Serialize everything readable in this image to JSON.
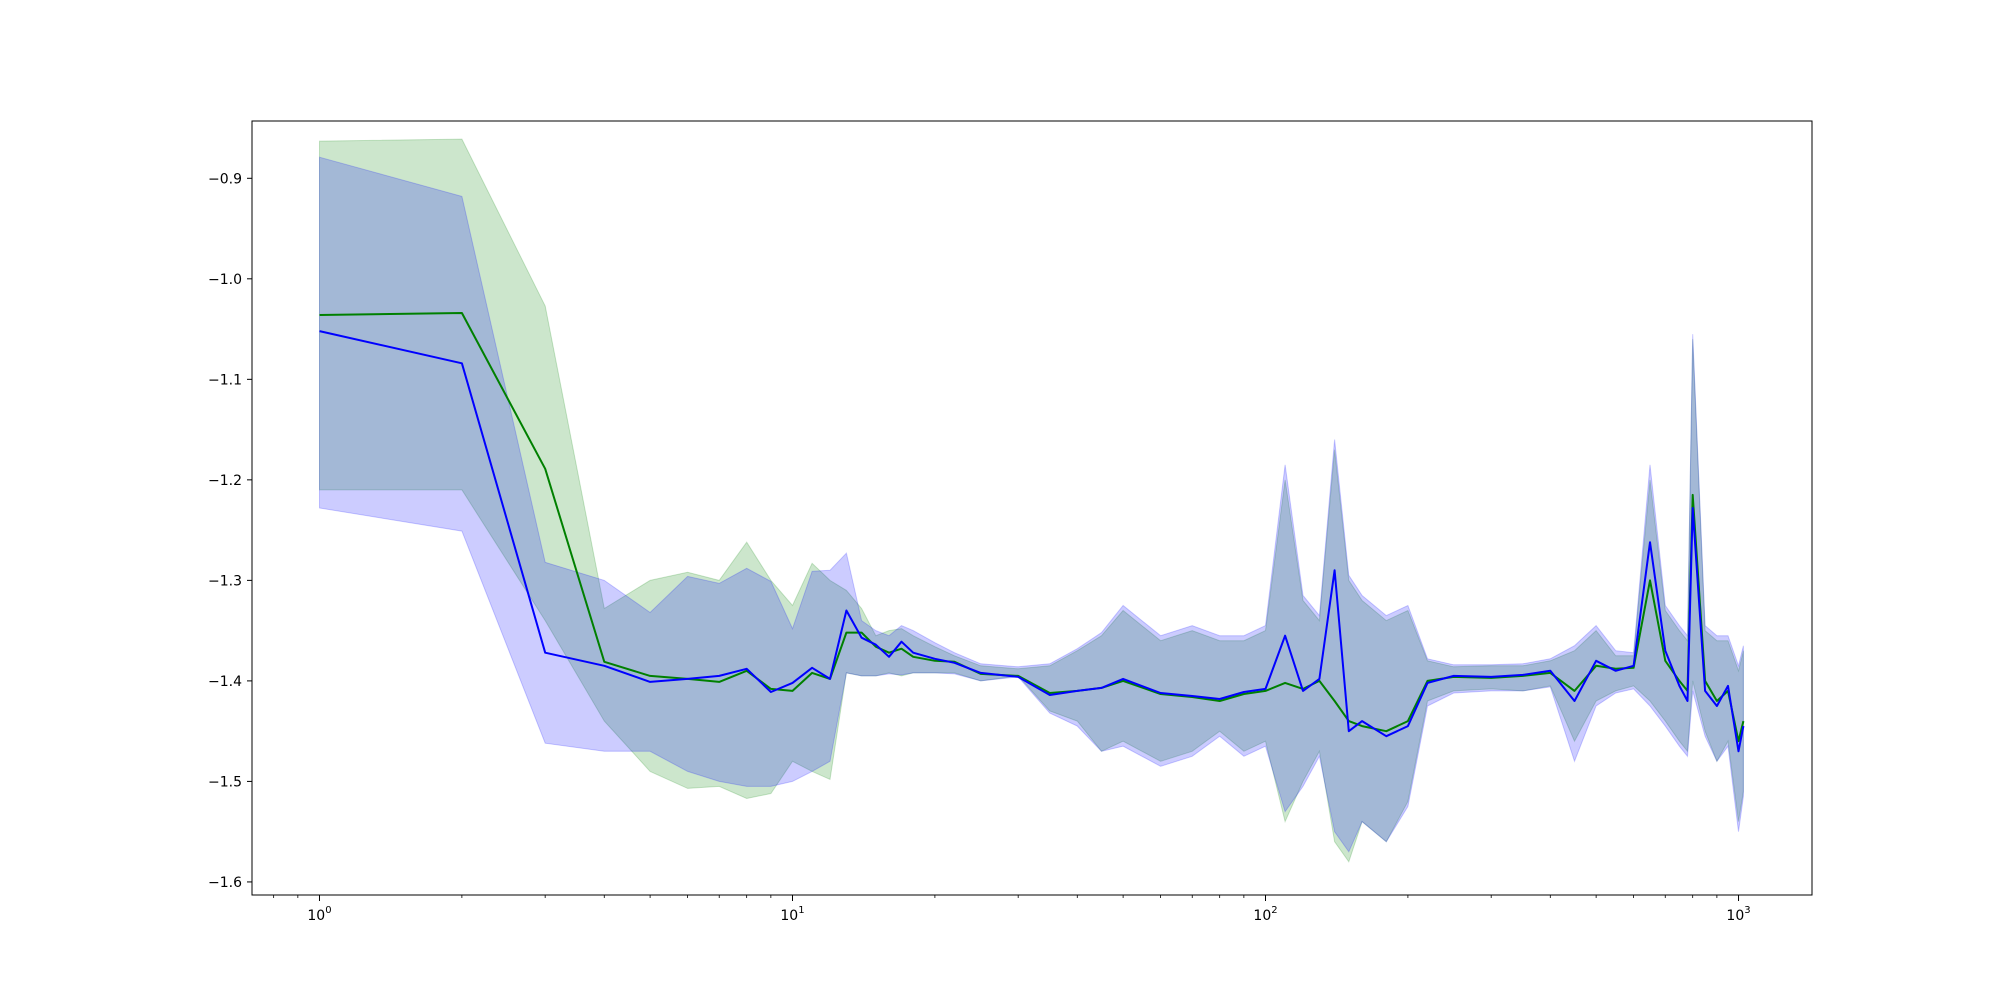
{
  "chart_data": {
    "type": "line",
    "title": "",
    "xlabel": "",
    "ylabel": "",
    "x_scale": "log",
    "xlim": [
      0.72,
      1430
    ],
    "ylim": [
      -1.613,
      -0.843
    ],
    "grid": false,
    "y_ticks": [
      {
        "value": -0.9,
        "label": "−0.9"
      },
      {
        "value": -1.0,
        "label": "−1.0"
      },
      {
        "value": -1.1,
        "label": "−1.1"
      },
      {
        "value": -1.2,
        "label": "−1.2"
      },
      {
        "value": -1.3,
        "label": "−1.3"
      },
      {
        "value": -1.4,
        "label": "−1.4"
      },
      {
        "value": -1.5,
        "label": "−1.5"
      },
      {
        "value": -1.6,
        "label": "−1.6"
      }
    ],
    "x_ticks": [
      {
        "value": 1,
        "base": "10",
        "exp": "0"
      },
      {
        "value": 10,
        "base": "10",
        "exp": "1"
      },
      {
        "value": 100,
        "base": "10",
        "exp": "2"
      },
      {
        "value": 1000,
        "base": "10",
        "exp": "3"
      }
    ],
    "series": [
      {
        "color": "#008000",
        "band_color": "#008000",
        "band_opacity": 0.2,
        "x": [
          1,
          2,
          3,
          4,
          5,
          6,
          7,
          8,
          9,
          10,
          11,
          12,
          13,
          14,
          15,
          16,
          17,
          18,
          20,
          22,
          25,
          30,
          35,
          40,
          45,
          50,
          60,
          70,
          80,
          90,
          100,
          110,
          120,
          130,
          140,
          150,
          160,
          180,
          200,
          220,
          250,
          300,
          350,
          400,
          450,
          500,
          550,
          600,
          650,
          700,
          750,
          780,
          800,
          850,
          900,
          950,
          1000,
          1024
        ],
        "y": [
          -1.036,
          -1.034,
          -1.189,
          -1.381,
          -1.395,
          -1.398,
          -1.401,
          -1.39,
          -1.408,
          -1.41,
          -1.392,
          -1.398,
          -1.352,
          -1.352,
          -1.366,
          -1.372,
          -1.368,
          -1.376,
          -1.38,
          -1.381,
          -1.393,
          -1.395,
          -1.412,
          -1.41,
          -1.407,
          -1.4,
          -1.413,
          -1.416,
          -1.42,
          -1.413,
          -1.41,
          -1.402,
          -1.408,
          -1.4,
          -1.42,
          -1.44,
          -1.445,
          -1.45,
          -1.44,
          -1.4,
          -1.396,
          -1.397,
          -1.395,
          -1.392,
          -1.41,
          -1.385,
          -1.388,
          -1.387,
          -1.3,
          -1.38,
          -1.4,
          -1.41,
          -1.215,
          -1.4,
          -1.42,
          -1.41,
          -1.46,
          -1.44
        ],
        "lower": [
          -1.21,
          -1.21,
          -1.34,
          -1.44,
          -1.49,
          -1.507,
          -1.505,
          -1.517,
          -1.512,
          -1.48,
          -1.49,
          -1.498,
          -1.392,
          -1.395,
          -1.395,
          -1.392,
          -1.395,
          -1.392,
          -1.392,
          -1.392,
          -1.4,
          -1.395,
          -1.43,
          -1.44,
          -1.47,
          -1.46,
          -1.48,
          -1.47,
          -1.45,
          -1.47,
          -1.46,
          -1.54,
          -1.5,
          -1.47,
          -1.56,
          -1.58,
          -1.54,
          -1.56,
          -1.52,
          -1.42,
          -1.41,
          -1.408,
          -1.41,
          -1.405,
          -1.46,
          -1.42,
          -1.41,
          -1.405,
          -1.42,
          -1.44,
          -1.46,
          -1.47,
          -1.4,
          -1.45,
          -1.48,
          -1.46,
          -1.54,
          -1.51
        ],
        "upper": [
          -0.863,
          -0.861,
          -1.027,
          -1.328,
          -1.3,
          -1.292,
          -1.3,
          -1.262,
          -1.3,
          -1.325,
          -1.283,
          -1.3,
          -1.31,
          -1.328,
          -1.355,
          -1.35,
          -1.348,
          -1.355,
          -1.366,
          -1.375,
          -1.385,
          -1.388,
          -1.385,
          -1.37,
          -1.355,
          -1.33,
          -1.36,
          -1.35,
          -1.36,
          -1.36,
          -1.35,
          -1.2,
          -1.32,
          -1.34,
          -1.17,
          -1.3,
          -1.32,
          -1.34,
          -1.33,
          -1.38,
          -1.386,
          -1.385,
          -1.385,
          -1.38,
          -1.37,
          -1.35,
          -1.375,
          -1.375,
          -1.2,
          -1.33,
          -1.35,
          -1.36,
          -1.06,
          -1.35,
          -1.36,
          -1.36,
          -1.39,
          -1.37
        ]
      },
      {
        "color": "#0000ff",
        "band_color": "#0000ff",
        "band_opacity": 0.2,
        "x": [
          1,
          2,
          3,
          4,
          5,
          6,
          7,
          8,
          9,
          10,
          11,
          12,
          13,
          14,
          15,
          16,
          17,
          18,
          20,
          22,
          25,
          30,
          35,
          40,
          45,
          50,
          60,
          70,
          80,
          90,
          100,
          110,
          120,
          130,
          140,
          150,
          160,
          180,
          200,
          220,
          250,
          300,
          350,
          400,
          450,
          500,
          550,
          600,
          650,
          700,
          750,
          780,
          800,
          850,
          900,
          950,
          1000,
          1024
        ],
        "y": [
          -1.052,
          -1.084,
          -1.372,
          -1.385,
          -1.401,
          -1.398,
          -1.395,
          -1.388,
          -1.411,
          -1.402,
          -1.387,
          -1.398,
          -1.33,
          -1.357,
          -1.364,
          -1.376,
          -1.361,
          -1.372,
          -1.378,
          -1.382,
          -1.392,
          -1.396,
          -1.414,
          -1.41,
          -1.407,
          -1.398,
          -1.412,
          -1.415,
          -1.418,
          -1.411,
          -1.408,
          -1.355,
          -1.41,
          -1.398,
          -1.29,
          -1.45,
          -1.44,
          -1.455,
          -1.445,
          -1.402,
          -1.395,
          -1.396,
          -1.394,
          -1.39,
          -1.42,
          -1.38,
          -1.39,
          -1.385,
          -1.262,
          -1.37,
          -1.405,
          -1.42,
          -1.228,
          -1.41,
          -1.425,
          -1.405,
          -1.47,
          -1.445
        ],
        "lower": [
          -1.228,
          -1.251,
          -1.462,
          -1.47,
          -1.47,
          -1.49,
          -1.5,
          -1.505,
          -1.505,
          -1.5,
          -1.49,
          -1.48,
          -1.392,
          -1.395,
          -1.395,
          -1.393,
          -1.394,
          -1.392,
          -1.392,
          -1.393,
          -1.4,
          -1.396,
          -1.432,
          -1.445,
          -1.47,
          -1.465,
          -1.485,
          -1.475,
          -1.455,
          -1.475,
          -1.465,
          -1.53,
          -1.505,
          -1.475,
          -1.55,
          -1.57,
          -1.54,
          -1.56,
          -1.525,
          -1.425,
          -1.412,
          -1.41,
          -1.41,
          -1.406,
          -1.48,
          -1.425,
          -1.412,
          -1.408,
          -1.425,
          -1.445,
          -1.465,
          -1.475,
          -1.41,
          -1.455,
          -1.48,
          -1.465,
          -1.55,
          -1.515
        ],
        "upper": [
          -0.879,
          -0.918,
          -1.282,
          -1.3,
          -1.332,
          -1.296,
          -1.303,
          -1.288,
          -1.301,
          -1.348,
          -1.291,
          -1.29,
          -1.273,
          -1.34,
          -1.35,
          -1.355,
          -1.345,
          -1.35,
          -1.362,
          -1.372,
          -1.383,
          -1.386,
          -1.383,
          -1.368,
          -1.352,
          -1.325,
          -1.355,
          -1.345,
          -1.355,
          -1.355,
          -1.345,
          -1.185,
          -1.315,
          -1.335,
          -1.16,
          -1.295,
          -1.315,
          -1.335,
          -1.325,
          -1.378,
          -1.384,
          -1.384,
          -1.383,
          -1.378,
          -1.365,
          -1.345,
          -1.37,
          -1.372,
          -1.185,
          -1.325,
          -1.345,
          -1.355,
          -1.055,
          -1.345,
          -1.355,
          -1.355,
          -1.385,
          -1.365
        ]
      }
    ]
  }
}
